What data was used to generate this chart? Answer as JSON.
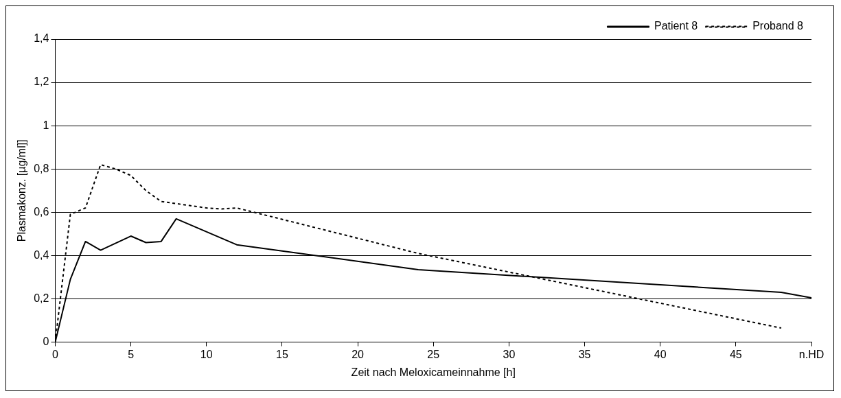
{
  "chart_data": {
    "type": "line",
    "xlabel": "Zeit nach Meloxicameinnahme [h]",
    "ylabel": "Plasmakonz. [µg/ml]]",
    "xlim": [
      0,
      50
    ],
    "xticks": [
      0,
      5,
      10,
      15,
      20,
      25,
      30,
      35,
      40,
      45,
      {
        "value": 50,
        "label": "n.HD"
      }
    ],
    "ylim": [
      0,
      1.4
    ],
    "yticks": [
      0,
      {
        "value": 0.2,
        "label": "0,2"
      },
      {
        "value": 0.4,
        "label": "0,4"
      },
      {
        "value": 0.6,
        "label": "0,6"
      },
      {
        "value": 0.8,
        "label": "0,8"
      },
      1,
      {
        "value": 1.2,
        "label": "1,2"
      },
      {
        "value": 1.4,
        "label": "1,4"
      }
    ],
    "grid": "y",
    "legend": "top right",
    "marker": "none",
    "series": [
      {
        "name": "Patient 8",
        "color": "#000000",
        "line_style": "solid",
        "x": [
          0,
          1,
          2,
          3,
          5,
          6,
          7,
          8,
          12,
          24,
          48,
          50
        ],
        "values": [
          0,
          0.29,
          0.465,
          0.425,
          0.49,
          0.46,
          0.465,
          0.57,
          0.45,
          0.335,
          0.23,
          0.205
        ]
      },
      {
        "name": "Proband 8",
        "color": "#000000",
        "line_style": "dashed",
        "x": [
          0,
          1,
          2,
          3,
          4,
          5,
          6,
          7,
          8,
          10,
          11,
          12,
          24,
          48
        ],
        "values": [
          0,
          0.59,
          0.62,
          0.82,
          0.8,
          0.77,
          0.7,
          0.65,
          0.64,
          0.62,
          0.615,
          0.62,
          0.41,
          0.065
        ]
      }
    ]
  }
}
